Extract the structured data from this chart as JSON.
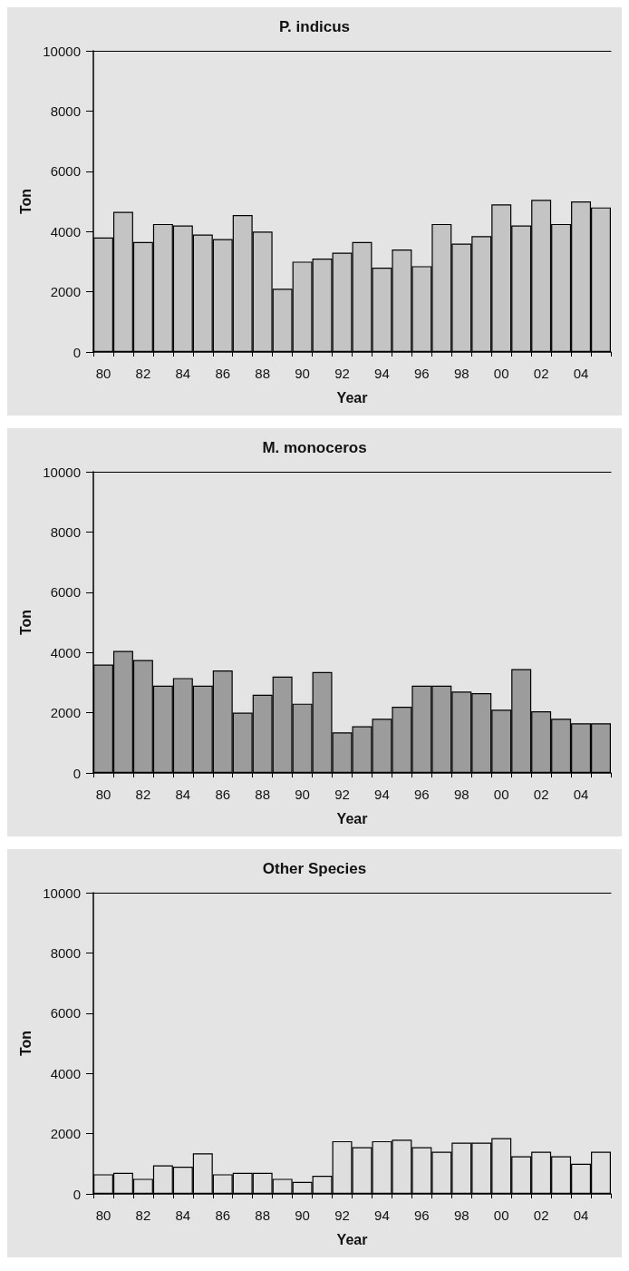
{
  "chart_data": [
    {
      "type": "bar",
      "title": "P. indicus",
      "xlabel": "Year",
      "ylabel": "Ton",
      "categories": [
        "80",
        null,
        "82",
        null,
        "84",
        null,
        "86",
        null,
        "88",
        null,
        "90",
        null,
        "92",
        null,
        "94",
        null,
        "96",
        null,
        "98",
        null,
        "00",
        null,
        "02",
        null,
        "04",
        null
      ],
      "values": [
        3800,
        4650,
        3650,
        4250,
        4200,
        3900,
        3750,
        4550,
        4000,
        2100,
        3000,
        3100,
        3300,
        3650,
        2800,
        3400,
        2850,
        4250,
        3600,
        3850,
        4900,
        4200,
        5050,
        4250,
        5000,
        4800
      ],
      "color": "#c4c4c4",
      "ylim": [
        0,
        10000
      ],
      "yticks": [
        0,
        2000,
        4000,
        6000,
        8000,
        10000
      ]
    },
    {
      "type": "bar",
      "title": "M. monoceros",
      "xlabel": "Year",
      "ylabel": "Ton",
      "categories": [
        "80",
        null,
        "82",
        null,
        "84",
        null,
        "86",
        null,
        "88",
        null,
        "90",
        null,
        "92",
        null,
        "94",
        null,
        "96",
        null,
        "98",
        null,
        "00",
        null,
        "02",
        null,
        "04",
        null
      ],
      "values": [
        3600,
        4050,
        3750,
        2900,
        3150,
        2900,
        3400,
        2000,
        2600,
        3200,
        2300,
        3350,
        1350,
        1550,
        1800,
        2200,
        2900,
        2900,
        2700,
        2650,
        2100,
        3450,
        2050,
        1800,
        1650,
        1650
      ],
      "color": "#9c9c9c",
      "ylim": [
        0,
        10000
      ],
      "yticks": [
        0,
        2000,
        4000,
        6000,
        8000,
        10000
      ]
    },
    {
      "type": "bar",
      "title": "Other Species",
      "xlabel": "Year",
      "ylabel": "Ton",
      "categories": [
        "80",
        null,
        "82",
        null,
        "84",
        null,
        "86",
        null,
        "88",
        null,
        "90",
        null,
        "92",
        null,
        "94",
        null,
        "96",
        null,
        "98",
        null,
        "00",
        null,
        "02",
        null,
        "04",
        null
      ],
      "values": [
        650,
        700,
        500,
        950,
        900,
        1350,
        650,
        700,
        700,
        500,
        400,
        600,
        1750,
        1550,
        1750,
        1800,
        1550,
        1400,
        1700,
        1700,
        1850,
        1250,
        1400,
        1250,
        1000,
        1400
      ],
      "color": "#dedede",
      "ylim": [
        0,
        10000
      ],
      "yticks": [
        0,
        2000,
        4000,
        6000,
        8000,
        10000
      ]
    }
  ]
}
